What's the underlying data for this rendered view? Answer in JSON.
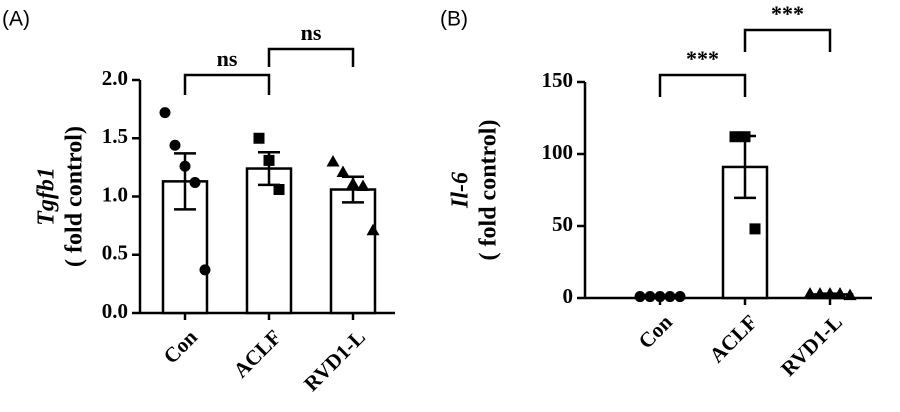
{
  "chart_data": [
    {
      "type": "bar",
      "panel": "(A)",
      "ylabel": "Tgfb1",
      "ylabel_unit": "( fold control)",
      "categories": [
        "Con",
        "ACLF",
        "RVD1-L"
      ],
      "values": [
        1.13,
        1.24,
        1.06
      ],
      "errors": [
        0.24,
        0.14,
        0.11
      ],
      "points": [
        [
          1.72,
          1.44,
          1.26,
          1.12,
          0.37
        ],
        [
          1.5,
          1.31,
          1.06
        ],
        [
          1.3,
          1.21,
          1.11,
          1.09,
          0.71
        ]
      ],
      "markers": [
        "circle",
        "square",
        "triangle"
      ],
      "color": "#000000",
      "ylim": [
        0,
        2
      ],
      "yticks": [
        {
          "value": 0,
          "label": "0.0"
        },
        0.5,
        {
          "value": 1,
          "label": "1.0"
        },
        1.5,
        {
          "value": 2,
          "label": "2.0"
        }
      ],
      "annotations": [
        {
          "from": "Con",
          "to": "ACLF",
          "label": "ns"
        },
        {
          "from": "ACLF",
          "to": "RVD1-L",
          "label": "ns"
        }
      ]
    },
    {
      "type": "bar",
      "panel": "(B)",
      "ylabel": "Il-6",
      "ylabel_unit": "( fold control)",
      "categories": [
        "Con",
        "ACLF",
        "RVD1-L"
      ],
      "values": [
        1,
        91,
        2.5
      ],
      "errors": [
        0.2,
        21.5,
        0.5
      ],
      "points": [
        [
          1,
          1,
          1,
          1,
          1
        ],
        [
          112,
          112,
          48
        ],
        [
          3,
          3,
          3,
          3,
          2
        ]
      ],
      "markers": [
        "circle",
        "square",
        "triangle"
      ],
      "color": "#000000",
      "ylim": [
        0,
        150
      ],
      "yticks": [
        0,
        50,
        100,
        150
      ],
      "annotations": [
        {
          "from": "Con",
          "to": "ACLF",
          "label": "***"
        },
        {
          "from": "ACLF",
          "to": "RVD1-L",
          "label": "***"
        }
      ]
    }
  ]
}
